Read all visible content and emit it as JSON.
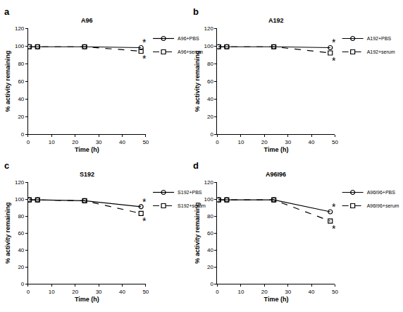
{
  "chart_data": [
    {
      "type": "line",
      "title": "A96",
      "x_label": "Time (h)",
      "y_label": "% activity remaining",
      "x": [
        0.5,
        4,
        24,
        48
      ],
      "series": [
        {
          "name": "A96+PBS",
          "color": "#000000",
          "marker": "circle",
          "line_style": "solid",
          "values": [
            99,
            99,
            99,
            98
          ]
        },
        {
          "name": "A96+serum",
          "color": "#000000",
          "marker": "square",
          "line_style": "dash",
          "values": [
            99,
            99,
            99,
            94
          ]
        }
      ],
      "xlim": [
        0,
        50
      ],
      "xticks": [
        0,
        10,
        20,
        30,
        40,
        50
      ],
      "ylim": [
        0,
        120
      ],
      "yticks": [
        0,
        20,
        40,
        60,
        80,
        100,
        120
      ],
      "grid": false,
      "legend": "upper right",
      "annotations": [
        {
          "text": "a"
        },
        {
          "text": "*",
          "x": 49.5,
          "y": 104
        },
        {
          "text": "*",
          "x": 49.5,
          "y": 86
        }
      ]
    },
    {
      "type": "line",
      "title": "A192",
      "x_label": "Time (h)",
      "y_label": "% activity remaining",
      "x": [
        0.5,
        4,
        24,
        48
      ],
      "series": [
        {
          "name": "A192+PBS",
          "color": "#000000",
          "marker": "circle",
          "line_style": "solid",
          "values": [
            99,
            99,
            99,
            98
          ]
        },
        {
          "name": "A192+serum",
          "color": "#000000",
          "marker": "square",
          "line_style": "dash",
          "values": [
            99,
            99,
            99,
            92
          ]
        }
      ],
      "xlim": [
        0,
        50
      ],
      "xticks": [
        0,
        10,
        20,
        30,
        40,
        50
      ],
      "ylim": [
        0,
        120
      ],
      "yticks": [
        0,
        20,
        40,
        60,
        80,
        100,
        120
      ],
      "grid": false,
      "legend": "upper right",
      "annotations": [
        {
          "text": "b"
        },
        {
          "text": "*",
          "x": 49.5,
          "y": 104
        },
        {
          "text": "*",
          "x": 49.5,
          "y": 83
        }
      ]
    },
    {
      "type": "line",
      "title": "S192",
      "x_label": "Time (h)",
      "y_label": "% activity remaining",
      "x": [
        0.5,
        4,
        24,
        48
      ],
      "series": [
        {
          "name": "S192+PBS",
          "color": "#000000",
          "marker": "circle",
          "line_style": "solid",
          "values": [
            99,
            99,
            98,
            91
          ]
        },
        {
          "name": "S192+serum",
          "color": "#000000",
          "marker": "square",
          "line_style": "dash",
          "values": [
            99,
            99,
            98,
            83
          ]
        }
      ],
      "xlim": [
        0,
        50
      ],
      "xticks": [
        0,
        10,
        20,
        30,
        40,
        50
      ],
      "ylim": [
        0,
        120
      ],
      "yticks": [
        0,
        20,
        40,
        60,
        80,
        100,
        120
      ],
      "grid": false,
      "legend": "upper right",
      "annotations": [
        {
          "text": "c"
        },
        {
          "text": "*",
          "x": 49.5,
          "y": 97
        },
        {
          "text": "*",
          "x": 49.5,
          "y": 74
        }
      ]
    },
    {
      "type": "line",
      "title": "A96I96",
      "x_label": "Time (h)",
      "y_label": "% activity remaining",
      "x": [
        0.5,
        4,
        24,
        48
      ],
      "series": [
        {
          "name": "A96I96+PBS",
          "color": "#000000",
          "marker": "circle",
          "line_style": "solid",
          "values": [
            99,
            99,
            99,
            85
          ]
        },
        {
          "name": "A96I96+serum",
          "color": "#000000",
          "marker": "square",
          "line_style": "dash",
          "values": [
            99,
            99,
            99,
            74
          ]
        }
      ],
      "xlim": [
        0,
        50
      ],
      "xticks": [
        0,
        10,
        20,
        30,
        40,
        50
      ],
      "ylim": [
        0,
        120
      ],
      "yticks": [
        0,
        20,
        40,
        60,
        80,
        100,
        120
      ],
      "grid": false,
      "legend": "upper right",
      "annotations": [
        {
          "text": "d"
        },
        {
          "text": "*",
          "x": 49.5,
          "y": 91
        },
        {
          "text": "*",
          "x": 49.5,
          "y": 65
        }
      ]
    }
  ]
}
